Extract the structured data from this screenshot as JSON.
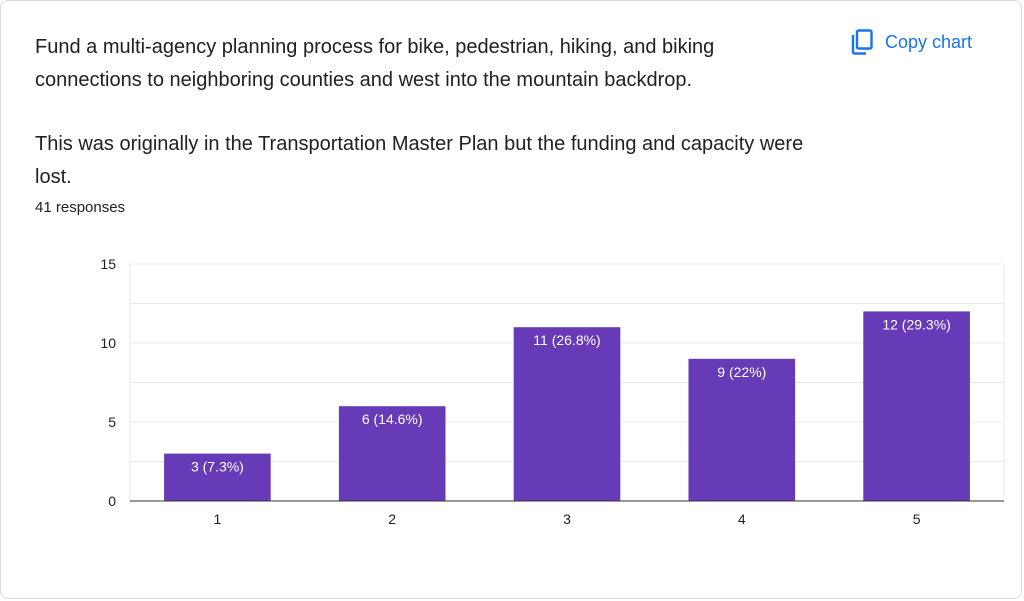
{
  "question": {
    "paragraph_1": "Fund a multi-agency planning process for bike, pedestrian, hiking, and biking connections to neighboring counties and west into the mountain backdrop.",
    "paragraph_2": "This was originally in the Transportation Master Plan but the funding and capacity were lost."
  },
  "responses_text": "41 responses",
  "copy_button": {
    "label": "Copy chart",
    "icon": "copy-icon"
  },
  "colors": {
    "bar": "#673ab7",
    "accent": "#1a73e8",
    "grid": "#e8e8e8",
    "axis": "#333333"
  },
  "chart_data": {
    "type": "bar",
    "categories": [
      "1",
      "2",
      "3",
      "4",
      "5"
    ],
    "values": [
      3,
      6,
      11,
      9,
      12
    ],
    "data_labels": [
      "3 (7.3%)",
      "6 (14.6%)",
      "11 (26.8%)",
      "9 (22%)",
      "12 (29.3%)"
    ],
    "yticks": [
      0,
      5,
      10,
      15
    ],
    "ylim": [
      0,
      15
    ],
    "title": "",
    "xlabel": "",
    "ylabel": "",
    "grid": true,
    "legend": "none"
  }
}
